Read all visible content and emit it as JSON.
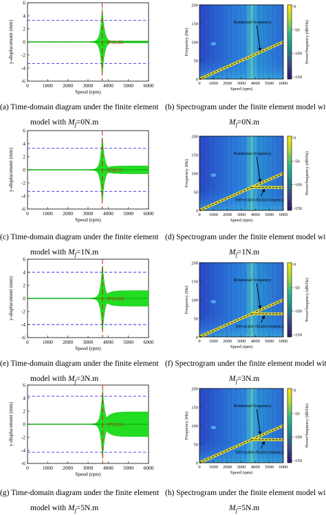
{
  "panels": [
    {
      "id": "a",
      "type": "time",
      "peak_label": "3703.65",
      "caption_line1": "(a) Time-domain diagram under the finite element",
      "caption_pre": "model with ",
      "caption_sym": "M",
      "caption_sub": "f",
      "caption_post": "=0N.m"
    },
    {
      "id": "b",
      "type": "spec",
      "arrows": [
        "Rotational frequency"
      ],
      "caption_line1": "(b) Spectrogram under the finite element model with",
      "caption_pre": "",
      "caption_sym": "M",
      "caption_sub": "f",
      "caption_post": "=0N.m"
    },
    {
      "id": "c",
      "type": "time",
      "peak_label": "3706.57",
      "caption_line1": "(c) Time-domain diagram under the finite element",
      "caption_pre": "model with ",
      "caption_sym": "M",
      "caption_sub": "f",
      "caption_post": "=1N.m"
    },
    {
      "id": "d",
      "type": "spec",
      "arrows": [
        "Rotational frequency",
        "Self-excited vibration frequency"
      ],
      "caption_line1": "(d) Spectrogram under the finite element model with",
      "caption_pre": "",
      "caption_sym": "M",
      "caption_sub": "f",
      "caption_post": "=1N.m"
    },
    {
      "id": "e",
      "type": "time",
      "peak_label": "3715.84",
      "caption_line1": "(e) Time-domain diagram under the finite element",
      "caption_pre": "model with ",
      "caption_sym": "M",
      "caption_sub": "f",
      "caption_post": "=3N.m"
    },
    {
      "id": "f",
      "type": "spec",
      "arrows": [
        "Rotational frequency",
        "Self-excited vibration frequency"
      ],
      "caption_line1": "(f) Spectrogram under the finite element model with",
      "caption_pre": "",
      "caption_sym": "M",
      "caption_sub": "f",
      "caption_post": "=3N.m"
    },
    {
      "id": "g",
      "type": "time",
      "peak_label": "3721.52",
      "caption_line1": "(g) Time-domain diagram under the finite element",
      "caption_pre": "model with ",
      "caption_sym": "M",
      "caption_sub": "f",
      "caption_post": "=5N.m"
    },
    {
      "id": "h",
      "type": "spec",
      "arrows": [
        "Rotational frequency",
        "Self-excited vibration frequency"
      ],
      "caption_line1": "(h) Spectrogram under the finite element model with",
      "caption_pre": "",
      "caption_sym": "M",
      "caption_sub": "f",
      "caption_post": "=5N.m"
    }
  ],
  "time_axes": {
    "xlabel": "Speed (rpm)",
    "ylabel": "y-displacement (mm)",
    "xticks": [
      "0",
      "1000",
      "2000",
      "3000",
      "4000",
      "5000",
      "6000"
    ],
    "yticks": [
      "6",
      "4",
      "2",
      "0",
      "-2",
      "-4",
      "-6"
    ]
  },
  "spec_axes": {
    "xlabel": "Speed (rpm)",
    "ylabel": "Frequency (Hz)",
    "cbar_label": "Power/frequency (dB/Hz)",
    "xticks": [
      "0",
      "1000",
      "2000",
      "3000",
      "4000",
      "5000",
      "6000"
    ],
    "yticks": [
      "200",
      "150",
      "100",
      "50",
      "0"
    ],
    "cbar_ticks_a": [
      "0",
      "-50",
      "-100",
      "-150"
    ],
    "cbar_ticks_b": [
      "0",
      "-50",
      "-100",
      "-150"
    ]
  },
  "chart_data": [
    {
      "type": "line",
      "panel": "a",
      "xlabel": "Speed (rpm)",
      "ylabel": "y-displacement (mm)",
      "xlim": [
        0,
        6000
      ],
      "ylim": [
        -6,
        6
      ],
      "threshold_levels": [
        3.3,
        -3.3
      ],
      "resonance_speed": 3703.65,
      "peak_amplitude": 5.3,
      "post_amplitude": 0.15
    },
    {
      "type": "heatmap",
      "panel": "b",
      "xlabel": "Speed (rpm)",
      "ylabel": "Frequency (Hz)",
      "xlim": [
        0,
        6000
      ],
      "ylim": [
        0,
        200
      ],
      "clim": [
        -150,
        0
      ],
      "rotational_frequency_end_hz": 100
    },
    {
      "type": "line",
      "panel": "c",
      "xlabel": "Speed (rpm)",
      "ylabel": "y-displacement (mm)",
      "xlim": [
        0,
        6000
      ],
      "ylim": [
        -6,
        6
      ],
      "threshold_levels": [
        3.3,
        -3.3
      ],
      "resonance_speed": 3706.57,
      "peak_amplitude": 5.3,
      "post_amplitude": 0.6
    },
    {
      "type": "heatmap",
      "panel": "d",
      "xlabel": "Speed (rpm)",
      "ylabel": "Frequency (Hz)",
      "xlim": [
        0,
        6000
      ],
      "ylim": [
        0,
        200
      ],
      "clim": [
        -150,
        0
      ],
      "rotational_frequency_end_hz": 100,
      "self_excited_frequency_hz": 62
    },
    {
      "type": "line",
      "panel": "e",
      "xlabel": "Speed (rpm)",
      "ylabel": "y-displacement (mm)",
      "xlim": [
        0,
        6000
      ],
      "ylim": [
        -6,
        6
      ],
      "threshold_levels": [
        4,
        -4
      ],
      "resonance_speed": 3715.84,
      "peak_amplitude": 5.5,
      "post_amplitude": 1.2
    },
    {
      "type": "heatmap",
      "panel": "f",
      "xlabel": "Speed (rpm)",
      "ylabel": "Frequency (Hz)",
      "xlim": [
        0,
        6000
      ],
      "ylim": [
        0,
        200
      ],
      "clim": [
        -150,
        0
      ],
      "rotational_frequency_end_hz": 100,
      "self_excited_frequency_hz": 62
    },
    {
      "type": "line",
      "panel": "g",
      "xlabel": "Speed (rpm)",
      "ylabel": "y-displacement (mm)",
      "xlim": [
        0,
        6000
      ],
      "ylim": [
        -6,
        6
      ],
      "threshold_levels": [
        4.3,
        -4.3
      ],
      "resonance_speed": 3721.52,
      "peak_amplitude": 5.6,
      "post_amplitude": 1.9
    },
    {
      "type": "heatmap",
      "panel": "h",
      "xlabel": "Speed (rpm)",
      "ylabel": "Frequency (Hz)",
      "xlim": [
        0,
        6000
      ],
      "ylim": [
        0,
        200
      ],
      "clim": [
        -150,
        0
      ],
      "rotational_frequency_end_hz": 100,
      "self_excited_frequency_hz": 62
    }
  ]
}
